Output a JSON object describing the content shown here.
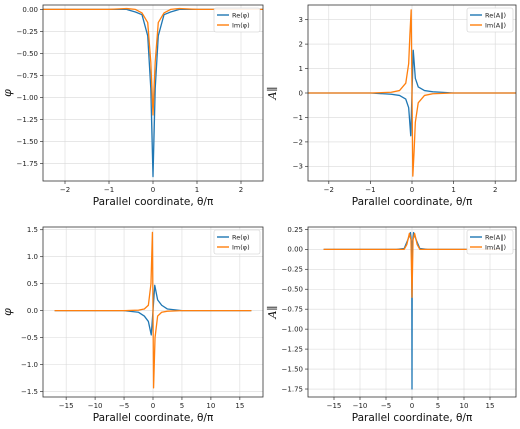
{
  "colors": {
    "re": "#1f77b4",
    "im": "#ff7f0e",
    "grid": "#d9d9d9",
    "axis": "#333333"
  },
  "chart_data": [
    {
      "type": "line",
      "xlabel": "Parallel coordinate, θ/π",
      "ylabel": "φ",
      "xlim": [
        -2.5,
        2.5
      ],
      "ylim": [
        -1.95,
        0.05
      ],
      "xticks": [
        -2,
        -1,
        0,
        1,
        2
      ],
      "xtick_labels": [
        "−2",
        "−1",
        "0",
        "1",
        "2"
      ],
      "yticks": [
        0,
        -0.25,
        -0.5,
        -0.75,
        -1.0,
        -1.25,
        -1.5,
        -1.75
      ],
      "ytick_labels": [
        "0.00",
        "−0.25",
        "−0.50",
        "−0.75",
        "−1.00",
        "−1.25",
        "−1.50",
        "−1.75"
      ],
      "grid": true,
      "legend": "top-right",
      "series": [
        {
          "name": "Re(φ)",
          "color": "#1f77b4",
          "x": [
            -2.5,
            -1.0,
            -0.6,
            -0.4,
            -0.25,
            -0.12,
            -0.05,
            0.0,
            0.05,
            0.12,
            0.25,
            0.4,
            0.6,
            1.0,
            2.5
          ],
          "y": [
            0.0,
            0.0,
            0.0,
            -0.03,
            -0.06,
            -0.3,
            -0.9,
            -1.9,
            -0.9,
            -0.3,
            -0.06,
            -0.03,
            0.0,
            0.0,
            0.0
          ]
        },
        {
          "name": "Im(φ)",
          "color": "#ff7f0e",
          "x": [
            -2.5,
            -1.0,
            -0.6,
            -0.4,
            -0.25,
            -0.12,
            -0.05,
            0.0,
            0.05,
            0.12,
            0.25,
            0.4,
            0.6,
            1.0,
            2.5
          ],
          "y": [
            0.0,
            0.0,
            0.01,
            0.0,
            -0.04,
            -0.15,
            -0.6,
            -1.2,
            -0.6,
            -0.15,
            -0.04,
            0.0,
            0.01,
            0.0,
            0.0
          ]
        }
      ]
    },
    {
      "type": "line",
      "xlabel": "Parallel coordinate, θ/π",
      "ylabel": "A∥",
      "xlim": [
        -2.5,
        2.5
      ],
      "ylim": [
        -3.6,
        3.6
      ],
      "xticks": [
        -2,
        -1,
        0,
        1,
        2
      ],
      "xtick_labels": [
        "−2",
        "−1",
        "0",
        "1",
        "2"
      ],
      "yticks": [
        -3,
        -2,
        -1,
        0,
        1,
        2,
        3
      ],
      "ytick_labels": [
        "−3",
        "−2",
        "−1",
        "0",
        "1",
        "2",
        "3"
      ],
      "grid": true,
      "legend": "top-right",
      "series": [
        {
          "name": "Re(A∥)",
          "color": "#1f77b4",
          "x": [
            -2.5,
            -1.0,
            -0.5,
            -0.3,
            -0.15,
            -0.08,
            -0.03,
            0.0,
            0.03,
            0.08,
            0.15,
            0.3,
            0.5,
            1.0,
            2.5
          ],
          "y": [
            0.0,
            0.0,
            -0.05,
            -0.1,
            -0.25,
            -0.6,
            -1.75,
            0.0,
            1.75,
            0.6,
            0.25,
            0.1,
            0.05,
            0.0,
            0.0
          ]
        },
        {
          "name": "Im(A∥)",
          "color": "#ff7f0e",
          "x": [
            -2.5,
            -1.0,
            -0.5,
            -0.3,
            -0.15,
            -0.08,
            -0.05,
            -0.02,
            0.0,
            0.02,
            0.05,
            0.08,
            0.15,
            0.3,
            0.5,
            1.0,
            2.5
          ],
          "y": [
            0.0,
            0.0,
            0.03,
            0.1,
            0.4,
            1.2,
            2.4,
            3.4,
            0.0,
            -3.4,
            -2.4,
            -1.2,
            -0.4,
            -0.1,
            -0.03,
            0.0,
            0.0
          ]
        }
      ]
    },
    {
      "type": "line",
      "xlabel": "Parallel coordinate, θ/π",
      "ylabel": "φ",
      "xlim": [
        -19,
        19
      ],
      "ylim": [
        -1.6,
        1.55
      ],
      "xticks": [
        -15,
        -10,
        -5,
        0,
        5,
        10,
        15
      ],
      "xtick_labels": [
        "−15",
        "−10",
        "−5",
        "0",
        "5",
        "10",
        "15"
      ],
      "yticks": [
        -1.5,
        -1.0,
        -0.5,
        0.0,
        0.5,
        1.0,
        1.5
      ],
      "ytick_labels": [
        "−1.5",
        "−1.0",
        "−0.5",
        "0.0",
        "0.5",
        "1.0",
        "1.5"
      ],
      "grid": true,
      "legend": "top-right",
      "series": [
        {
          "name": "Re(φ)",
          "color": "#1f77b4",
          "x": [
            -17,
            -5,
            -2.5,
            -1.5,
            -0.8,
            -0.3,
            0.0,
            0.3,
            0.8,
            1.5,
            2.5,
            5,
            17
          ],
          "y": [
            0.0,
            0.0,
            -0.03,
            -0.1,
            -0.2,
            -0.45,
            0.0,
            0.47,
            0.2,
            0.1,
            0.03,
            0.0,
            0.0
          ]
        },
        {
          "name": "Im(φ)",
          "color": "#ff7f0e",
          "x": [
            -17,
            -5,
            -2.5,
            -1.5,
            -0.8,
            -0.35,
            -0.1,
            0.0,
            0.1,
            0.35,
            0.8,
            1.5,
            2.5,
            5,
            17
          ],
          "y": [
            0.0,
            0.0,
            0.01,
            0.03,
            0.1,
            0.5,
            1.45,
            0.0,
            -1.43,
            -0.5,
            -0.1,
            -0.03,
            -0.01,
            0.0,
            0.0
          ]
        }
      ]
    },
    {
      "type": "line",
      "xlabel": "Parallel coordinate, θ/π",
      "ylabel": "A∥",
      "xlim": [
        -20,
        20
      ],
      "ylim": [
        -1.85,
        0.28
      ],
      "xticks": [
        -15,
        -10,
        -5,
        0,
        5,
        10,
        15
      ],
      "xtick_labels": [
        "−15",
        "−10",
        "−5",
        "0",
        "5",
        "10",
        "15"
      ],
      "yticks": [
        0.25,
        0.0,
        -0.25,
        -0.5,
        -0.75,
        -1.0,
        -1.25,
        -1.5,
        -1.75
      ],
      "ytick_labels": [
        "0.25",
        "0.00",
        "−0.25",
        "−0.50",
        "−0.75",
        "−1.00",
        "−1.25",
        "−1.50",
        "−1.75"
      ],
      "grid": true,
      "legend": "top-right",
      "series": [
        {
          "name": "Re(A∥)",
          "color": "#1f77b4",
          "x": [
            -17,
            -3,
            -1.5,
            -0.8,
            -0.3,
            -0.05,
            0.0,
            0.05,
            0.3,
            0.8,
            1.5,
            3,
            17
          ],
          "y": [
            0.0,
            0.0,
            0.01,
            0.12,
            0.21,
            0.05,
            -1.75,
            0.05,
            0.21,
            0.12,
            0.01,
            0.0,
            0.0
          ]
        },
        {
          "name": "Im(A∥)",
          "color": "#ff7f0e",
          "x": [
            -17,
            -3,
            -1.5,
            -1.0,
            -0.5,
            -0.2,
            0.0,
            0.2,
            0.5,
            1.0,
            1.5,
            3,
            17
          ],
          "y": [
            0.0,
            0.0,
            0.0,
            0.06,
            0.2,
            0.12,
            -0.6,
            0.12,
            0.2,
            0.06,
            0.0,
            0.0,
            0.0
          ]
        }
      ]
    }
  ]
}
